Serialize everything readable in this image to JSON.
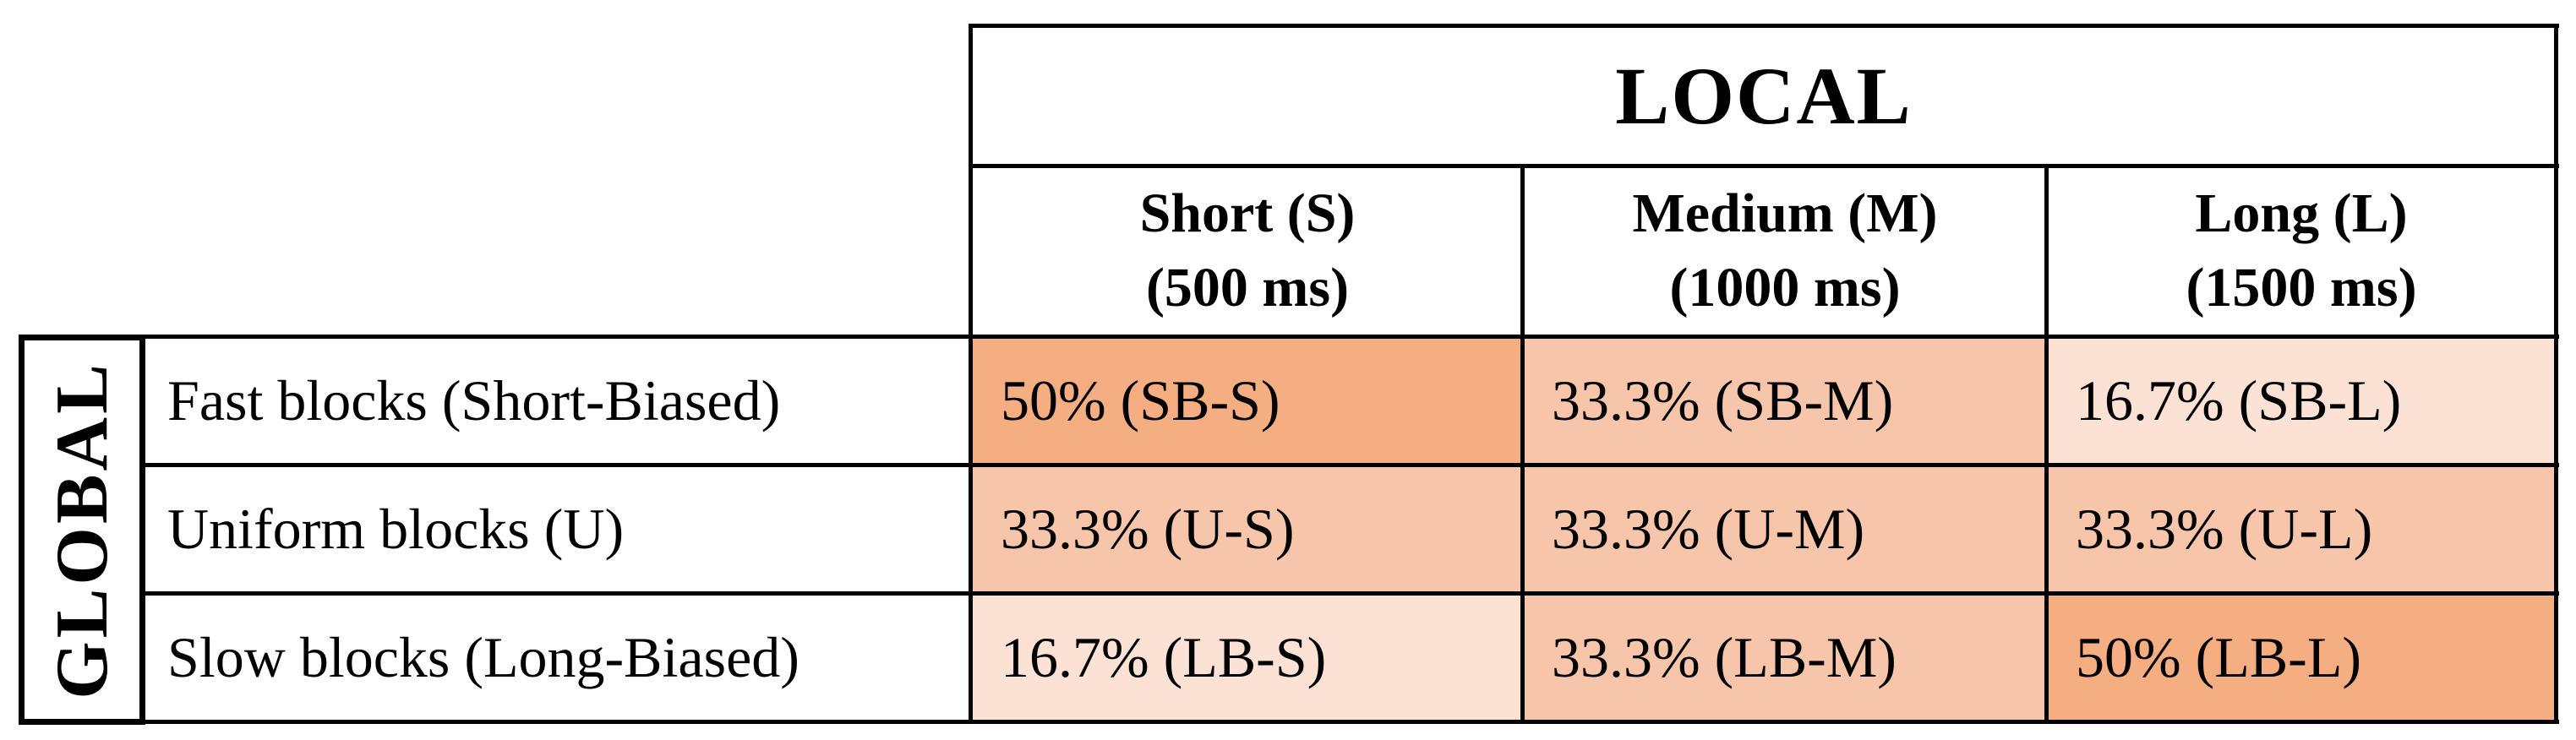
{
  "local_label": "LOCAL",
  "global_label": "GLOBAL",
  "columns": [
    {
      "line1": "Short (S)",
      "line2": "(500 ms)"
    },
    {
      "line1": "Medium (M)",
      "line2": "(1000 ms)"
    },
    {
      "line1": "Long (L)",
      "line2": "(1500 ms)"
    }
  ],
  "rows": [
    {
      "label": "Fast blocks (Short-Biased)",
      "cells": [
        {
          "text": "50% (SB-S)",
          "color": "#f4ae82"
        },
        {
          "text": "33.3% (SB-M)",
          "color": "#f7c5a9"
        },
        {
          "text": "16.7% (SB-L)",
          "color": "#fbe2d4"
        }
      ]
    },
    {
      "label": "Uniform blocks (U)",
      "cells": [
        {
          "text": "33.3% (U-S)",
          "color": "#f7c5a9"
        },
        {
          "text": "33.3% (U-M)",
          "color": "#f7c5a9"
        },
        {
          "text": "33.3% (U-L)",
          "color": "#f7c5a9"
        }
      ]
    },
    {
      "label": "Slow blocks (Long-Biased)",
      "cells": [
        {
          "text": "16.7% (LB-S)",
          "color": "#fbe2d4"
        },
        {
          "text": "33.3% (LB-M)",
          "color": "#f7c5a9"
        },
        {
          "text": "50% (LB-L)",
          "color": "#f4ae82"
        }
      ]
    }
  ]
}
